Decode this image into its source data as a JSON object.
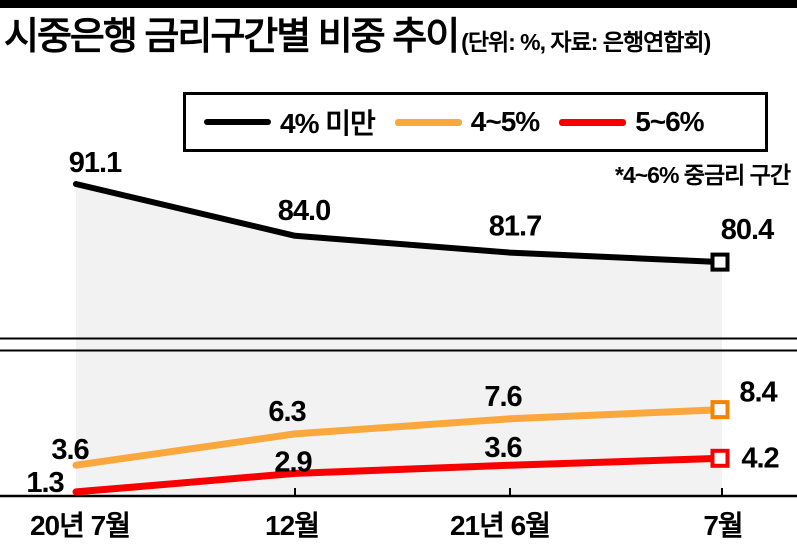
{
  "header": {
    "title": "시중은행 금리구간별 비중 추이",
    "subtitle": "(단위: %, 자료: 은행연합회)"
  },
  "legend": {
    "items": [
      {
        "label": "4% 미만",
        "color": "#000000"
      },
      {
        "label": "4~5%",
        "color": "#FAA73E"
      },
      {
        "label": "5~6%",
        "color": "#F90000"
      }
    ]
  },
  "annotation": "*4~6% 중금리 구간",
  "colors": {
    "top_bar": "#000000",
    "area_fill": "#F2F2F2",
    "axis": "#000000",
    "orange_marker_border": "#F78400"
  },
  "chart_data": {
    "type": "line",
    "title": "시중은행 금리구간별 비중 추이",
    "unit": "%",
    "source": "은행연합회",
    "categories": [
      "20년 7월",
      "12월",
      "21년 6월",
      "7월"
    ],
    "series": [
      {
        "name": "4% 미만",
        "axis": "upper",
        "color": "#000000",
        "values": [
          91.1,
          84.0,
          81.7,
          80.4
        ]
      },
      {
        "name": "4~5%",
        "axis": "lower",
        "color": "#FAA73E",
        "marker_color": "#F78400",
        "values": [
          3.6,
          6.3,
          7.6,
          8.4
        ]
      },
      {
        "name": "5~6%",
        "axis": "lower",
        "color": "#F90000",
        "values": [
          1.3,
          2.9,
          3.6,
          4.2
        ]
      }
    ],
    "axis_break": true,
    "value_labels": true,
    "value_label_decimals": 1,
    "legend_position": "top",
    "area_fill_under_first_series": true,
    "end_markers": "open-square",
    "annotation": "*4~6% 중금리 구간"
  }
}
